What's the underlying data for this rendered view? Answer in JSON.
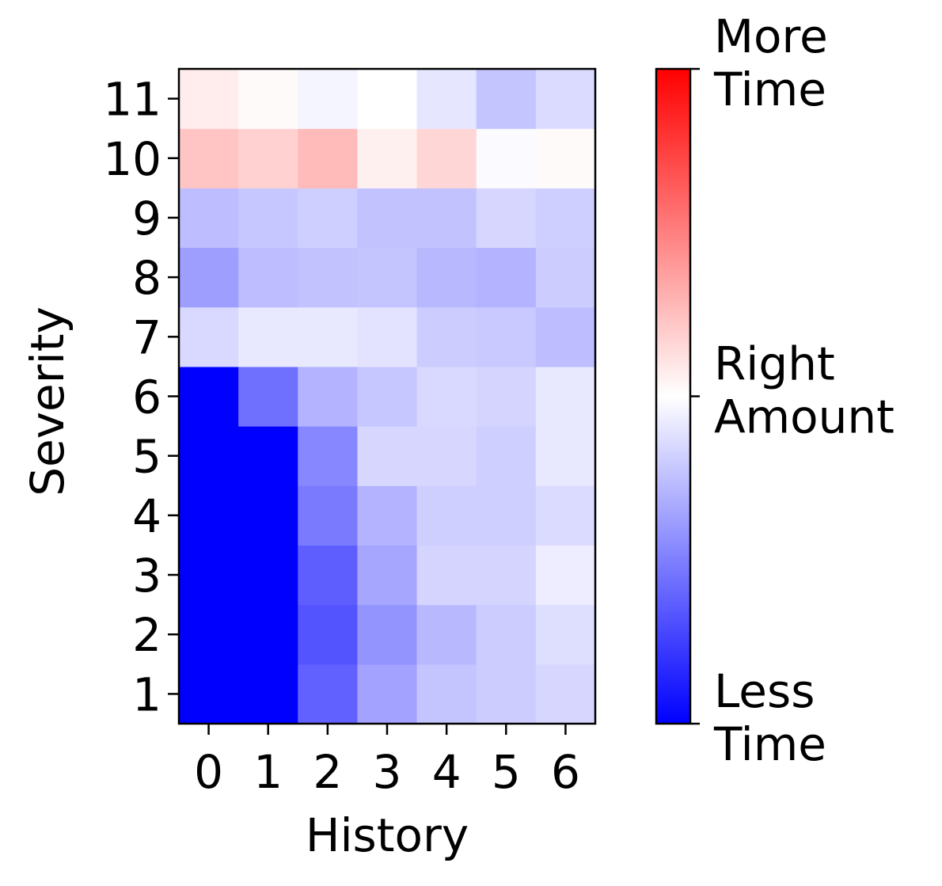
{
  "chart_data": {
    "type": "heatmap",
    "title": "",
    "xlabel": "History",
    "ylabel": "Severity",
    "x_categories": [
      "0",
      "1",
      "2",
      "3",
      "4",
      "5",
      "6"
    ],
    "y_categories": [
      "1",
      "2",
      "3",
      "4",
      "5",
      "6",
      "7",
      "8",
      "9",
      "10",
      "11"
    ],
    "value_range": [
      -1,
      1
    ],
    "colormap": "bwr",
    "colorbar": {
      "ticks": [
        {
          "value": -1,
          "label_lines": [
            "Less",
            "Time"
          ]
        },
        {
          "value": 0,
          "label_lines": [
            "Right",
            "Amount"
          ]
        },
        {
          "value": 1,
          "label_lines": [
            "More",
            "Time"
          ]
        }
      ]
    },
    "values_by_severity": {
      "1": [
        -1.0,
        -1.0,
        -0.62,
        -0.36,
        -0.23,
        -0.2,
        -0.16
      ],
      "2": [
        -1.0,
        -1.0,
        -0.67,
        -0.42,
        -0.28,
        -0.2,
        -0.13
      ],
      "3": [
        -1.0,
        -1.0,
        -0.63,
        -0.35,
        -0.17,
        -0.17,
        -0.07
      ],
      "4": [
        -1.0,
        -1.0,
        -0.52,
        -0.3,
        -0.19,
        -0.19,
        -0.14
      ],
      "5": [
        -1.0,
        -1.0,
        -0.47,
        -0.16,
        -0.16,
        -0.19,
        -0.09
      ],
      "6": [
        -1.0,
        -0.56,
        -0.3,
        -0.22,
        -0.15,
        -0.17,
        -0.09
      ],
      "7": [
        -0.15,
        -0.09,
        -0.09,
        -0.11,
        -0.2,
        -0.21,
        -0.26
      ],
      "8": [
        -0.38,
        -0.26,
        -0.24,
        -0.23,
        -0.28,
        -0.3,
        -0.2
      ],
      "9": [
        -0.26,
        -0.22,
        -0.19,
        -0.24,
        -0.24,
        -0.16,
        -0.19
      ],
      "10": [
        0.23,
        0.18,
        0.27,
        0.06,
        0.16,
        -0.02,
        0.02
      ],
      "11": [
        0.07,
        0.02,
        -0.04,
        0.0,
        -0.1,
        -0.23,
        -0.14
      ]
    }
  },
  "colors": {
    "low": "#0000ff",
    "mid": "#ffffff",
    "high": "#ff0000",
    "axis": "#000000"
  }
}
